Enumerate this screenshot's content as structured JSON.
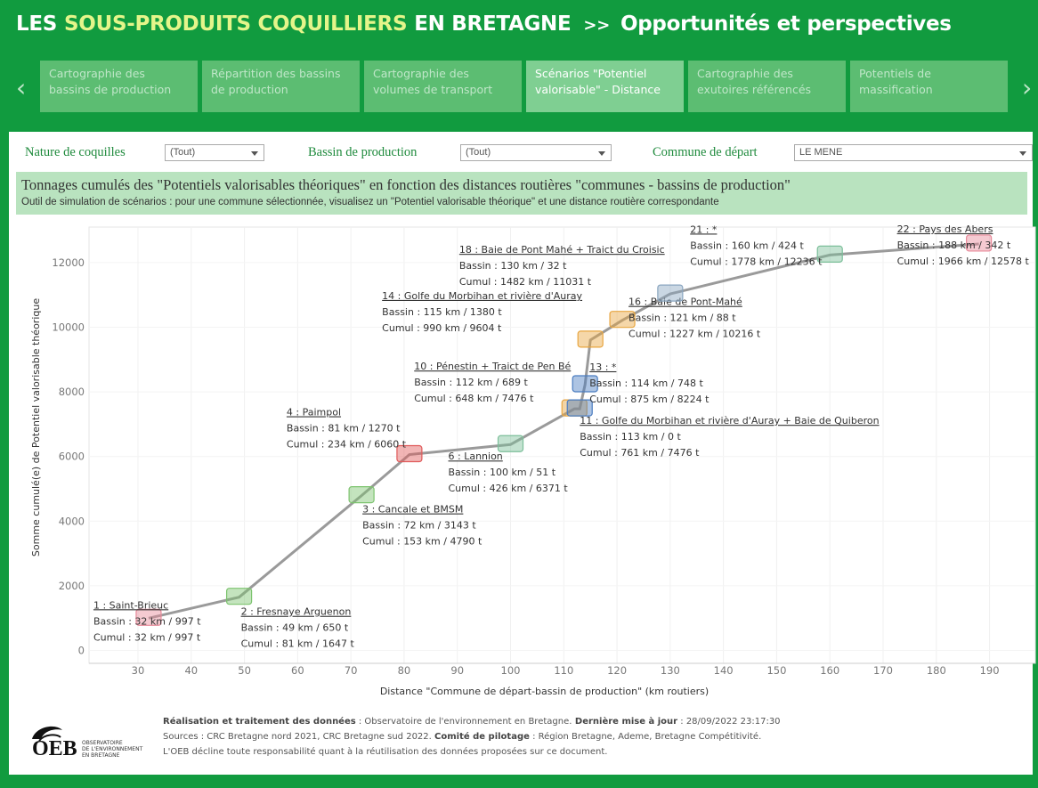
{
  "header": {
    "prefix": "LES",
    "highlight": "SOUS-PRODUITS COQUILLIERS",
    "suffix": "EN BRETAGNE",
    "separator": ">>",
    "subtitle": "Opportunités et perspectives"
  },
  "tabs": [
    [
      "Cartographie des",
      "bassins de production"
    ],
    [
      "Répartition des bassins",
      "de production"
    ],
    [
      "Cartographie des",
      "volumes de transport"
    ],
    [
      "Scénarios \"Potentiel",
      "valorisable\" - Distance"
    ],
    [
      "Cartographie des",
      "exutoires référencés"
    ],
    [
      "Potentiels de",
      "massification"
    ]
  ],
  "active_tab": 3,
  "filters": [
    {
      "label": "Nature de coquilles",
      "value": "(Tout)"
    },
    {
      "label": "Bassin de production",
      "value": "(Tout)"
    },
    {
      "label": "Commune de départ",
      "value": "LE MENE"
    }
  ],
  "banner": {
    "title": "Tonnages cumulés des \"Potentiels valorisables théoriques\" en fonction des distances routières \"communes - bassins de production\"",
    "subtitle": "Outil de simulation de scénarios : pour une commune sélectionnée, visualisez un \"Potentiel valorisable théorique\" et une distance routière correspondante"
  },
  "chart_data": {
    "type": "line",
    "x_label": "Distance \"Commune de départ-bassin de production\" (km routiers)",
    "y_label": "Somme cumulé(e) de Potentiel valorisable théorique",
    "x": [
      32,
      49,
      72,
      81,
      100,
      112,
      113,
      114,
      115,
      121,
      130,
      160,
      188
    ],
    "values": [
      997,
      1647,
      4790,
      6060,
      6371,
      7476,
      7476,
      8224,
      9604,
      10216,
      11031,
      12236,
      12578
    ],
    "color": "#9a9a9a",
    "marker_colors": [
      "#e88a9a",
      "#7cc36e",
      "#7cc36e",
      "#e05a5a",
      "#7cbf9a",
      "#e8a640",
      "#4a7cc0",
      "#4a7cc0",
      "#e8a640",
      "#e8a640",
      "#8aa6c0",
      "#7cbf9a",
      "#e88a9a"
    ],
    "annotations": [
      {
        "title": "1 : Saint-Brieuc",
        "bassin": "Bassin : 32 km / 997 t",
        "cumul": "Cumul : 32 km / 997 t"
      },
      {
        "title": "2 : Fresnaye Arguenon",
        "bassin": "Bassin : 49 km / 650 t",
        "cumul": "Cumul : 81 km / 1647 t"
      },
      {
        "title": "3 : Cancale et BMSM",
        "bassin": "Bassin : 72 km / 3143 t",
        "cumul": "Cumul : 153 km / 4790 t"
      },
      {
        "title": "4 : Paimpol",
        "bassin": "Bassin : 81 km / 1270 t",
        "cumul": "Cumul : 234 km / 6060 t"
      },
      {
        "title": "6 : Lannion",
        "bassin": "Bassin : 100 km / 51 t",
        "cumul": "Cumul : 426 km / 6371 t"
      },
      {
        "title": "10 : Pénestin + Traict de Pen Bé",
        "bassin": "Bassin : 112 km / 689 t",
        "cumul": "Cumul : 648 km / 7476 t"
      },
      {
        "title": "11 : Golfe du Morbihan et rivière d'Auray + Baie de Quiberon",
        "bassin": "Bassin : 113 km / 0 t",
        "cumul": "Cumul : 761 km / 7476 t"
      },
      {
        "title": "13 : *",
        "bassin": "Bassin : 114 km / 748 t",
        "cumul": "Cumul : 875 km / 8224 t"
      },
      {
        "title": "14 : Golfe du Morbihan et rivière d'Auray",
        "bassin": "Bassin : 115 km / 1380 t",
        "cumul": "Cumul : 990 km / 9604 t"
      },
      {
        "title": "16 : Baie de Pont-Mahé",
        "bassin": "Bassin : 121 km / 88 t",
        "cumul": "Cumul : 1227 km / 10216 t"
      },
      {
        "title": "18 : Baie de Pont Mahé + Traict du Croisic",
        "bassin": "Bassin : 130 km / 32 t",
        "cumul": "Cumul : 1482 km / 11031 t"
      },
      {
        "title": "21 : *",
        "bassin": "Bassin : 160 km / 424 t",
        "cumul": "Cumul : 1778 km / 12236 t"
      },
      {
        "title": "22 : Pays des Abers",
        "bassin": "Bassin : 188 km / 342 t",
        "cumul": "Cumul : 1966 km / 12578 t"
      }
    ],
    "xlim": [
      20.8,
      198.6
    ],
    "xticks": [
      30,
      40,
      50,
      60,
      70,
      80,
      90,
      100,
      110,
      120,
      130,
      140,
      150,
      160,
      170,
      180,
      190
    ],
    "ylim": [
      -400,
      13100
    ],
    "yticks": [
      0,
      2000,
      4000,
      6000,
      8000,
      10000,
      12000
    ],
    "grid": true
  },
  "footer": {
    "lines": [
      [
        {
          "text": "Réalisation et traitement des données",
          "bold": true
        },
        {
          "text": " : Observatoire de l'environnement en Bretagne.",
          "bold": false
        },
        {
          "text": " Dernière mise à jour",
          "bold": true
        },
        {
          "text": " :  28/09/2022 23:17:30",
          "bold": false
        }
      ],
      [
        {
          "text": "Sources : CRC Bretagne nord 2021, CRC Bretagne sud 2022. ",
          "bold": false
        },
        {
          "text": "Comité de pilotage",
          "bold": true
        },
        {
          "text": " : Région Bretagne, Ademe, Bretagne Compétitivité.",
          "bold": false
        }
      ],
      [
        {
          "text": "L'OEB décline toute responsabilité quant à la réutilisation des données proposées sur ce document.",
          "bold": false
        }
      ]
    ],
    "logo": {
      "name": "OEB",
      "caption": [
        "OBSERVATOIRE",
        "DE L'ENVIRONNEMENT",
        "EN BRETAGNE"
      ]
    }
  }
}
